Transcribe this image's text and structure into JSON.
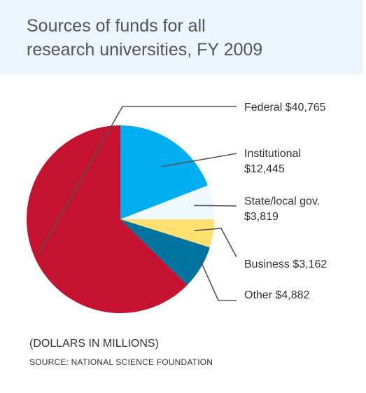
{
  "header": {
    "title_line1": "Sources of funds for all",
    "title_line2": "research universities, FY 2009"
  },
  "chart_data": {
    "type": "pie",
    "title": "Sources of funds for all research universities, FY 2009",
    "unit": "(DOLLARS IN MILLIONS)",
    "slices": [
      {
        "name": "Federal",
        "value": 40765,
        "label_line1": "Federal $40,765",
        "label_line2": "",
        "color": "#c41230"
      },
      {
        "name": "Institutional",
        "value": 12445,
        "label_line1": "Institutional",
        "label_line2": "$12,445",
        "color": "#00aeef"
      },
      {
        "name": "State/local gov.",
        "value": 3819,
        "label_line1": "State/local gov.",
        "label_line2": "$3,819",
        "color": "#eef8fd"
      },
      {
        "name": "Business",
        "value": 3162,
        "label_line1": "Business $3,162",
        "label_line2": "",
        "color": "#ffdf6e"
      },
      {
        "name": "Other",
        "value": 4882,
        "label_line1": "Other $4,882",
        "label_line2": "",
        "color": "#00739e"
      }
    ]
  },
  "footer": {
    "note": "(DOLLARS IN MILLIONS)",
    "source": "SOURCE: NATIONAL SCIENCE FOUNDATION"
  },
  "colors": {
    "title_band": "#eaf6fb",
    "leader_line": "#555555"
  }
}
